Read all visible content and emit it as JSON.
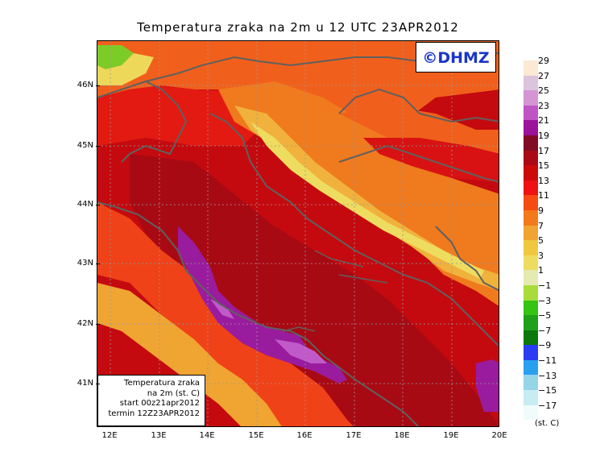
{
  "title": "Temperatura zraka na 2m u 12 UTC 23APR2012",
  "logo": "©DHMZ",
  "info_box": {
    "line1": "Temperatura zraka",
    "line2": "na 2m (st. C)",
    "line3": "start 00z21apr2012",
    "line4": "termin 12Z23APR2012"
  },
  "lat_labels": [
    "46N",
    "45N",
    "44N",
    "43N",
    "42N",
    "41N"
  ],
  "lon_labels": [
    "12E",
    "13E",
    "14E",
    "15E",
    "16E",
    "17E",
    "18E",
    "19E",
    "20E"
  ],
  "legend": {
    "labels": [
      "29",
      "27",
      "25",
      "23",
      "21",
      "19",
      "17",
      "15",
      "13",
      "11",
      "9",
      "7",
      "5",
      "3",
      "1",
      "−1",
      "−3",
      "−5",
      "−7",
      "−9",
      "−11",
      "−13",
      "−15",
      "−17"
    ],
    "colors": [
      "#fbe9d4",
      "#dcc4dc",
      "#d495d4",
      "#bf55c4",
      "#9b129b",
      "#820a24",
      "#aa0a16",
      "#cc0a0a",
      "#ee1212",
      "#f54a12",
      "#f37a1a",
      "#f0a432",
      "#f0c840",
      "#eedc60",
      "#e4eab0",
      "#a8dc3a",
      "#34c414",
      "#1ea01a",
      "#0c780c",
      "#2a3cf4",
      "#28a0f0",
      "#96d4e8",
      "#c8ecf4",
      "#f0fcfc"
    ],
    "unit": "(st. C)"
  },
  "colors": {
    "dark_red": "#b00a12",
    "red": "#dc1010",
    "orange_red": "#f04218",
    "orange": "#f07a1e",
    "yellow_orange": "#f0b23c",
    "yellow": "#eed85a",
    "purple": "#9a1c9e",
    "light_purple": "#c05ac8",
    "green": "#7ccc28",
    "coast": "#606060",
    "logo_blue": "#1a35c8"
  }
}
